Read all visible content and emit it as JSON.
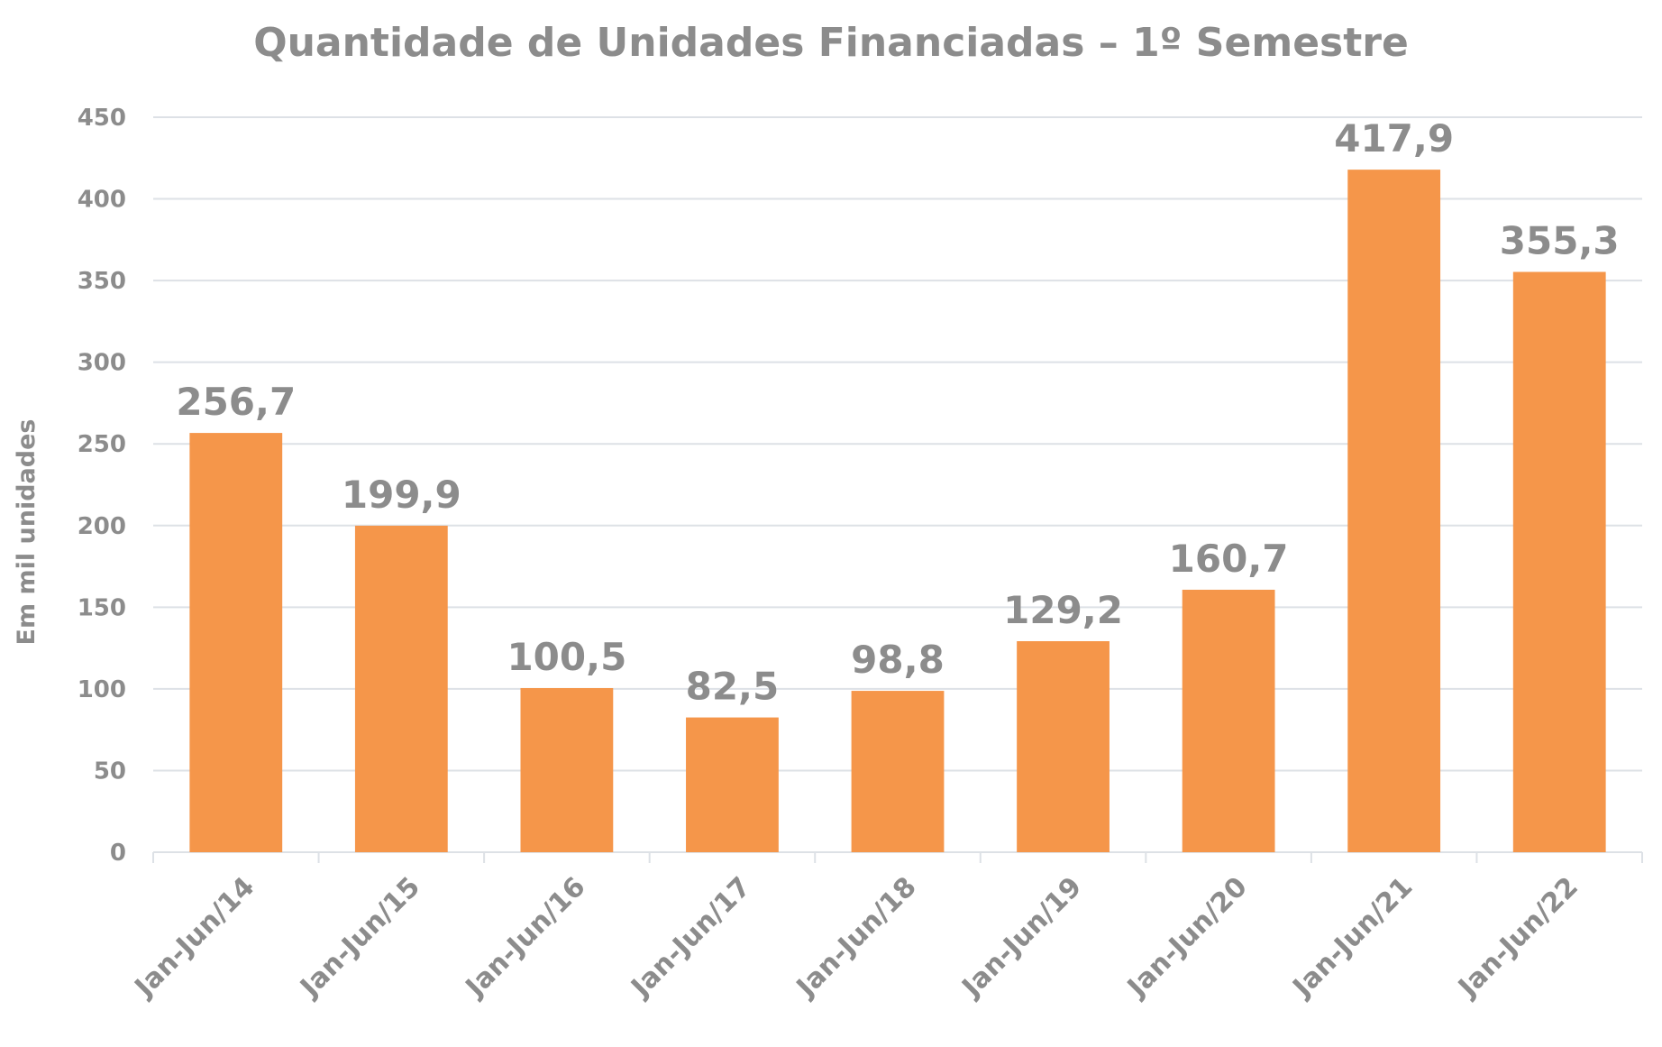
{
  "chart_data": {
    "type": "bar",
    "title": "Quantidade de Unidades Financiadas – 1º Semestre",
    "xlabel": "",
    "ylabel": "Em mil unidades",
    "categories": [
      "Jan-Jun/14",
      "Jan-Jun/15",
      "Jan-Jun/16",
      "Jan-Jun/17",
      "Jan-Jun/18",
      "Jan-Jun/19",
      "Jan-Jun/20",
      "Jan-Jun/21",
      "Jan-Jun/22"
    ],
    "values": [
      256.7,
      199.9,
      100.5,
      82.5,
      98.8,
      129.2,
      160.7,
      417.9,
      355.3
    ],
    "data_labels": [
      "256,7",
      "199,9",
      "100,5",
      "82,5",
      "98,8",
      "129,2",
      "160,7",
      "417,9",
      "355,3"
    ],
    "ylim": [
      0,
      450
    ],
    "yticks": [
      0,
      50,
      100,
      150,
      200,
      250,
      300,
      350,
      400,
      450
    ],
    "grid": true,
    "legend": "none",
    "bar_color": "#f5964a"
  }
}
